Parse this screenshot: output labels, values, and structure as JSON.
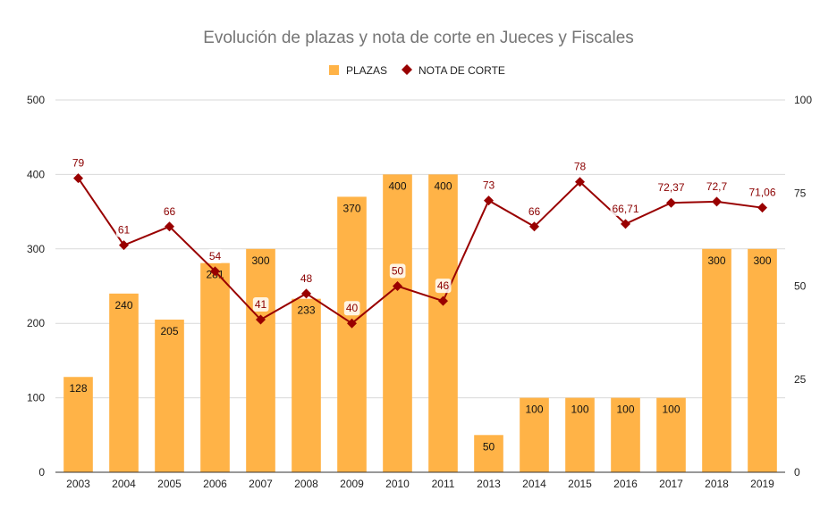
{
  "chart_data": {
    "type": "bar",
    "title": "Evolución de plazas y nota de corte en Jueces y Fiscales",
    "categories": [
      "2003",
      "2004",
      "2005",
      "2006",
      "2007",
      "2008",
      "2009",
      "2010",
      "2011",
      "2013",
      "2014",
      "2015",
      "2016",
      "2017",
      "2018",
      "2019"
    ],
    "series": [
      {
        "name": "PLAZAS",
        "kind": "bar",
        "axis": "left",
        "color": "#ffb347",
        "values": [
          128,
          240,
          205,
          281,
          300,
          233,
          370,
          400,
          400,
          50,
          100,
          100,
          100,
          100,
          300,
          300
        ],
        "labels": [
          "128",
          "240",
          "205",
          "281",
          "300",
          "233",
          "370",
          "400",
          "400",
          "50",
          "100",
          "100",
          "100",
          "100",
          "300",
          "300"
        ]
      },
      {
        "name": "NOTA DE CORTE",
        "kind": "line",
        "axis": "right",
        "color": "#990000",
        "values": [
          79,
          61,
          66,
          54,
          41,
          48,
          40,
          50,
          46,
          73,
          66,
          78,
          66.71,
          72.37,
          72.7,
          71.06
        ],
        "labels": [
          "79",
          "61",
          "66",
          "54",
          "41",
          "48",
          "40",
          "50",
          "46",
          "73",
          "66",
          "78",
          "66,71",
          "72,37",
          "72,7",
          "71,06"
        ]
      }
    ],
    "y_left": {
      "ylim": [
        0,
        500
      ],
      "ticks": [
        0,
        100,
        200,
        300,
        400,
        500
      ],
      "tick_labels": [
        "0",
        "100",
        "200",
        "300",
        "400",
        "500"
      ]
    },
    "y_right": {
      "ylim": [
        0,
        100
      ],
      "ticks": [
        0,
        25,
        50,
        75,
        100
      ],
      "tick_labels": [
        "0",
        "25",
        "50",
        "75",
        "100"
      ]
    },
    "legend": {
      "position": "top",
      "entries": [
        "PLAZAS",
        "NOTA DE CORTE"
      ]
    },
    "grid": true
  }
}
